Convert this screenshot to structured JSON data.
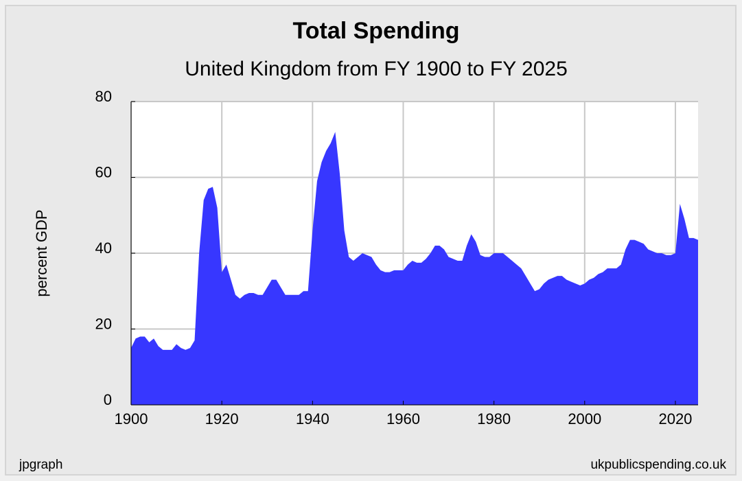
{
  "chart_data": {
    "type": "area",
    "title": "Total Spending",
    "subtitle": "United Kingdom from FY 1900 to FY 2025",
    "y_label": "percent GDP",
    "footer_left": "jpgraph",
    "footer_right": "ukpublicspending.co.uk",
    "x": [
      1900,
      1901,
      1902,
      1903,
      1904,
      1905,
      1906,
      1907,
      1908,
      1909,
      1910,
      1911,
      1912,
      1913,
      1914,
      1915,
      1916,
      1917,
      1918,
      1919,
      1920,
      1921,
      1922,
      1923,
      1924,
      1925,
      1926,
      1927,
      1928,
      1929,
      1930,
      1931,
      1932,
      1933,
      1934,
      1935,
      1936,
      1937,
      1938,
      1939,
      1940,
      1941,
      1942,
      1943,
      1944,
      1945,
      1946,
      1947,
      1948,
      1949,
      1950,
      1951,
      1952,
      1953,
      1954,
      1955,
      1956,
      1957,
      1958,
      1959,
      1960,
      1961,
      1962,
      1963,
      1964,
      1965,
      1966,
      1967,
      1968,
      1969,
      1970,
      1971,
      1972,
      1973,
      1974,
      1975,
      1976,
      1977,
      1978,
      1979,
      1980,
      1981,
      1982,
      1983,
      1984,
      1985,
      1986,
      1987,
      1988,
      1989,
      1990,
      1991,
      1992,
      1993,
      1994,
      1995,
      1996,
      1997,
      1998,
      1999,
      2000,
      2001,
      2002,
      2003,
      2004,
      2005,
      2006,
      2007,
      2008,
      2009,
      2010,
      2011,
      2012,
      2013,
      2014,
      2015,
      2016,
      2017,
      2018,
      2019,
      2020,
      2021,
      2022,
      2023,
      2024,
      2025
    ],
    "values": [
      15,
      17.5,
      18,
      18,
      16.5,
      17.5,
      15.5,
      14.5,
      14.5,
      14.5,
      16,
      15,
      14.5,
      15,
      17,
      40,
      54,
      57,
      57.5,
      52,
      35,
      37,
      33,
      29,
      28,
      29,
      29.5,
      29.5,
      29,
      29,
      31,
      33,
      33,
      31,
      29,
      29,
      29,
      29,
      30,
      30,
      46,
      59,
      64,
      67,
      69,
      72,
      61,
      46,
      39,
      38,
      39,
      40,
      39.5,
      39,
      37,
      35.5,
      35,
      35,
      35.5,
      35.5,
      35.5,
      37,
      38,
      37.5,
      37.5,
      38.5,
      40,
      42,
      42,
      41,
      39,
      38.5,
      38,
      38,
      42,
      45,
      43,
      39.5,
      39,
      39,
      40,
      40,
      40,
      39,
      38,
      37,
      36,
      34,
      32,
      30,
      30.5,
      32,
      33,
      33.5,
      34,
      34,
      33,
      32.5,
      32,
      31.5,
      32,
      33,
      33.5,
      34.5,
      35,
      36,
      36,
      36,
      37,
      41,
      43.5,
      43.5,
      43,
      42.5,
      41,
      40.5,
      40,
      40,
      39.5,
      39.5,
      40,
      53,
      49,
      44,
      44,
      43.5
    ],
    "color": "#3737ff",
    "xlim": [
      1900,
      2025
    ],
    "xticks": [
      1900,
      1920,
      1940,
      1960,
      1980,
      2000,
      2020
    ],
    "ylim": [
      0,
      80
    ],
    "yticks": [
      0,
      20,
      40,
      60,
      80
    ],
    "grid": true
  }
}
